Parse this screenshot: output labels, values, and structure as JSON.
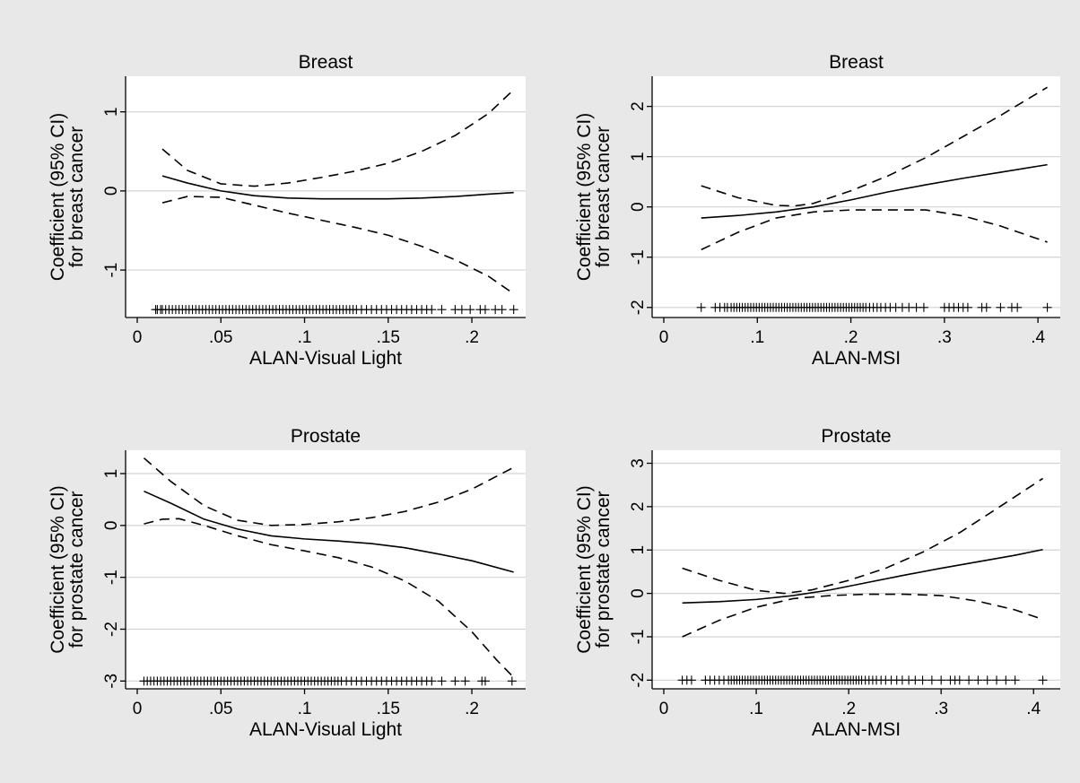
{
  "page": {
    "background": "#e8e8e8",
    "plot_background": "#ffffff",
    "grid_color": "#d3d3d3"
  },
  "chart_data": [
    {
      "type": "line",
      "title": "Breast",
      "xlabel": "ALAN-Visual Light",
      "ylabel": [
        "Coefficient (95% CI)",
        "for breast cancer"
      ],
      "xlim": [
        0,
        0.23
      ],
      "ylim": [
        -1.6,
        1.45
      ],
      "xticks": [
        {
          "value": 0,
          "label": "0"
        },
        {
          "value": 0.05,
          "label": ".05"
        },
        {
          "value": 0.1,
          "label": ".1"
        },
        {
          "value": 0.15,
          "label": ".15"
        },
        {
          "value": 0.2,
          "label": ".2"
        }
      ],
      "yticks": [
        {
          "value": -1,
          "label": "-1"
        },
        {
          "value": 0,
          "label": "0"
        },
        {
          "value": 1,
          "label": "1"
        }
      ],
      "grid": true,
      "series": [
        {
          "style": "solid",
          "x": [
            0.015,
            0.03,
            0.05,
            0.07,
            0.09,
            0.11,
            0.13,
            0.15,
            0.17,
            0.19,
            0.21,
            0.225
          ],
          "y": [
            0.19,
            0.1,
            0.0,
            -0.06,
            -0.09,
            -0.1,
            -0.1,
            -0.1,
            -0.09,
            -0.07,
            -0.04,
            -0.02
          ]
        },
        {
          "style": "dashed",
          "x": [
            0.015,
            0.03,
            0.05,
            0.07,
            0.09,
            0.11,
            0.13,
            0.15,
            0.17,
            0.19,
            0.21,
            0.225
          ],
          "y": [
            0.53,
            0.26,
            0.09,
            0.06,
            0.1,
            0.17,
            0.25,
            0.35,
            0.5,
            0.7,
            0.98,
            1.28
          ]
        },
        {
          "style": "dashed",
          "x": [
            0.015,
            0.03,
            0.05,
            0.07,
            0.09,
            0.11,
            0.13,
            0.15,
            0.17,
            0.19,
            0.21,
            0.225
          ],
          "y": [
            -0.15,
            -0.07,
            -0.08,
            -0.18,
            -0.28,
            -0.37,
            -0.46,
            -0.56,
            -0.7,
            -0.87,
            -1.08,
            -1.3
          ]
        }
      ],
      "rug": {
        "y": -1.5,
        "x": [
          0.011,
          0.012,
          0.014,
          0.015,
          0.017,
          0.019,
          0.021,
          0.023,
          0.025,
          0.027,
          0.029,
          0.031,
          0.033,
          0.035,
          0.037,
          0.039,
          0.041,
          0.043,
          0.045,
          0.047,
          0.049,
          0.051,
          0.053,
          0.055,
          0.057,
          0.059,
          0.061,
          0.063,
          0.065,
          0.067,
          0.069,
          0.071,
          0.073,
          0.075,
          0.077,
          0.079,
          0.081,
          0.083,
          0.085,
          0.087,
          0.089,
          0.091,
          0.093,
          0.095,
          0.097,
          0.099,
          0.101,
          0.103,
          0.105,
          0.107,
          0.109,
          0.111,
          0.113,
          0.115,
          0.117,
          0.119,
          0.121,
          0.123,
          0.125,
          0.127,
          0.129,
          0.131,
          0.134,
          0.137,
          0.14,
          0.143,
          0.146,
          0.149,
          0.152,
          0.155,
          0.158,
          0.161,
          0.164,
          0.167,
          0.17,
          0.173,
          0.176,
          0.182,
          0.19,
          0.194,
          0.199,
          0.205,
          0.208,
          0.214,
          0.218,
          0.225
        ]
      }
    },
    {
      "type": "line",
      "title": "Breast",
      "xlabel": "ALAN-MSI",
      "ylabel": [
        "Coefficient (95% CI)",
        "for breast cancer"
      ],
      "xlim": [
        0,
        0.42
      ],
      "ylim": [
        -2.2,
        2.6
      ],
      "xticks": [
        {
          "value": 0,
          "label": "0"
        },
        {
          "value": 0.1,
          "label": ".1"
        },
        {
          "value": 0.2,
          "label": ".2"
        },
        {
          "value": 0.3,
          "label": ".3"
        },
        {
          "value": 0.4,
          "label": ".4"
        }
      ],
      "yticks": [
        {
          "value": -2,
          "label": "-2"
        },
        {
          "value": -1,
          "label": "-1"
        },
        {
          "value": 0,
          "label": "0"
        },
        {
          "value": 1,
          "label": "1"
        },
        {
          "value": 2,
          "label": "2"
        }
      ],
      "grid": true,
      "series": [
        {
          "style": "solid",
          "x": [
            0.04,
            0.08,
            0.12,
            0.16,
            0.2,
            0.24,
            0.28,
            0.32,
            0.36,
            0.41
          ],
          "y": [
            -0.22,
            -0.17,
            -0.1,
            0.0,
            0.14,
            0.3,
            0.44,
            0.57,
            0.69,
            0.84
          ]
        },
        {
          "style": "dashed",
          "x": [
            0.04,
            0.08,
            0.12,
            0.14,
            0.16,
            0.2,
            0.24,
            0.28,
            0.32,
            0.36,
            0.41
          ],
          "y": [
            0.42,
            0.18,
            0.03,
            0.02,
            0.07,
            0.32,
            0.62,
            0.98,
            1.4,
            1.82,
            2.38
          ]
        },
        {
          "style": "dashed",
          "x": [
            0.04,
            0.08,
            0.12,
            0.16,
            0.2,
            0.24,
            0.28,
            0.32,
            0.36,
            0.41
          ],
          "y": [
            -0.85,
            -0.5,
            -0.22,
            -0.1,
            -0.06,
            -0.06,
            -0.06,
            -0.18,
            -0.38,
            -0.7
          ]
        }
      ],
      "rug": {
        "y": -2.0,
        "x": [
          0.04,
          0.055,
          0.06,
          0.065,
          0.068,
          0.072,
          0.075,
          0.078,
          0.081,
          0.084,
          0.087,
          0.09,
          0.093,
          0.096,
          0.099,
          0.102,
          0.105,
          0.108,
          0.111,
          0.114,
          0.117,
          0.12,
          0.123,
          0.126,
          0.129,
          0.132,
          0.135,
          0.138,
          0.141,
          0.144,
          0.147,
          0.15,
          0.153,
          0.156,
          0.159,
          0.162,
          0.165,
          0.168,
          0.171,
          0.174,
          0.177,
          0.18,
          0.183,
          0.186,
          0.189,
          0.192,
          0.195,
          0.198,
          0.201,
          0.204,
          0.207,
          0.21,
          0.213,
          0.216,
          0.22,
          0.224,
          0.228,
          0.232,
          0.237,
          0.242,
          0.248,
          0.255,
          0.262,
          0.27,
          0.278,
          0.3,
          0.305,
          0.31,
          0.315,
          0.32,
          0.325,
          0.34,
          0.345,
          0.36,
          0.372,
          0.378,
          0.41
        ]
      }
    },
    {
      "type": "line",
      "title": "Prostate",
      "xlabel": "ALAN-Visual Light",
      "ylabel": [
        "Coefficient (95% CI)",
        "for prostate cancer"
      ],
      "xlim": [
        0,
        0.23
      ],
      "ylim": [
        -3.15,
        1.45
      ],
      "xticks": [
        {
          "value": 0,
          "label": "0"
        },
        {
          "value": 0.05,
          "label": ".05"
        },
        {
          "value": 0.1,
          "label": ".1"
        },
        {
          "value": 0.15,
          "label": ".15"
        },
        {
          "value": 0.2,
          "label": ".2"
        }
      ],
      "yticks": [
        {
          "value": -3,
          "label": "-3"
        },
        {
          "value": -2,
          "label": "-2"
        },
        {
          "value": -1,
          "label": "-1"
        },
        {
          "value": 0,
          "label": "0"
        },
        {
          "value": 1,
          "label": "1"
        }
      ],
      "grid": true,
      "series": [
        {
          "style": "solid",
          "x": [
            0.004,
            0.02,
            0.04,
            0.06,
            0.08,
            0.1,
            0.12,
            0.14,
            0.16,
            0.18,
            0.2,
            0.225
          ],
          "y": [
            0.66,
            0.43,
            0.12,
            -0.07,
            -0.2,
            -0.26,
            -0.3,
            -0.35,
            -0.43,
            -0.55,
            -0.68,
            -0.9
          ]
        },
        {
          "style": "dashed",
          "x": [
            0.004,
            0.02,
            0.04,
            0.06,
            0.08,
            0.1,
            0.12,
            0.14,
            0.16,
            0.18,
            0.2,
            0.225
          ],
          "y": [
            1.3,
            0.85,
            0.38,
            0.1,
            0.0,
            0.02,
            0.07,
            0.15,
            0.27,
            0.45,
            0.7,
            1.12
          ]
        },
        {
          "style": "dashed",
          "x": [
            0.004,
            0.015,
            0.025,
            0.04,
            0.06,
            0.08,
            0.1,
            0.12,
            0.14,
            0.16,
            0.18,
            0.2,
            0.215,
            0.225
          ],
          "y": [
            0.03,
            0.12,
            0.13,
            0.0,
            -0.2,
            -0.37,
            -0.49,
            -0.62,
            -0.8,
            -1.07,
            -1.46,
            -2.05,
            -2.6,
            -2.93
          ]
        }
      ],
      "rug": {
        "y": -3.0,
        "x": [
          0.004,
          0.006,
          0.008,
          0.01,
          0.012,
          0.014,
          0.016,
          0.018,
          0.02,
          0.022,
          0.024,
          0.026,
          0.028,
          0.03,
          0.032,
          0.034,
          0.036,
          0.038,
          0.04,
          0.042,
          0.044,
          0.046,
          0.048,
          0.05,
          0.052,
          0.054,
          0.056,
          0.058,
          0.06,
          0.062,
          0.064,
          0.066,
          0.068,
          0.07,
          0.072,
          0.074,
          0.076,
          0.078,
          0.08,
          0.082,
          0.084,
          0.086,
          0.088,
          0.09,
          0.092,
          0.094,
          0.096,
          0.098,
          0.1,
          0.102,
          0.104,
          0.106,
          0.108,
          0.11,
          0.112,
          0.114,
          0.116,
          0.118,
          0.12,
          0.122,
          0.125,
          0.128,
          0.131,
          0.134,
          0.137,
          0.14,
          0.143,
          0.146,
          0.149,
          0.152,
          0.155,
          0.158,
          0.161,
          0.164,
          0.167,
          0.17,
          0.173,
          0.176,
          0.182,
          0.19,
          0.196,
          0.206,
          0.208,
          0.224
        ]
      }
    },
    {
      "type": "line",
      "title": "Prostate",
      "xlabel": "ALAN-MSI",
      "ylabel": [
        "Coefficient (95% CI)",
        "for prostate cancer"
      ],
      "xlim": [
        0,
        0.425
      ],
      "ylim": [
        -2.2,
        3.3
      ],
      "xticks": [
        {
          "value": 0,
          "label": "0"
        },
        {
          "value": 0.1,
          "label": ".1"
        },
        {
          "value": 0.2,
          "label": ".2"
        },
        {
          "value": 0.3,
          "label": ".3"
        },
        {
          "value": 0.4,
          "label": ".4"
        }
      ],
      "yticks": [
        {
          "value": -2,
          "label": "-2"
        },
        {
          "value": -1,
          "label": "-1"
        },
        {
          "value": 0,
          "label": "0"
        },
        {
          "value": 1,
          "label": "1"
        },
        {
          "value": 2,
          "label": "2"
        },
        {
          "value": 3,
          "label": "3"
        }
      ],
      "grid": true,
      "series": [
        {
          "style": "solid",
          "x": [
            0.02,
            0.06,
            0.1,
            0.14,
            0.18,
            0.22,
            0.26,
            0.3,
            0.34,
            0.38,
            0.41
          ],
          "y": [
            -0.22,
            -0.19,
            -0.14,
            -0.05,
            0.08,
            0.25,
            0.42,
            0.58,
            0.73,
            0.88,
            1.01
          ]
        },
        {
          "style": "dashed",
          "x": [
            0.02,
            0.06,
            0.1,
            0.13,
            0.16,
            0.2,
            0.24,
            0.28,
            0.32,
            0.36,
            0.41
          ],
          "y": [
            0.58,
            0.3,
            0.07,
            0.0,
            0.08,
            0.3,
            0.58,
            0.95,
            1.4,
            1.95,
            2.65
          ]
        },
        {
          "style": "dashed",
          "x": [
            0.02,
            0.06,
            0.1,
            0.14,
            0.18,
            0.22,
            0.26,
            0.3,
            0.34,
            0.38,
            0.41
          ],
          "y": [
            -1.0,
            -0.62,
            -0.32,
            -0.12,
            -0.05,
            -0.02,
            -0.02,
            -0.05,
            -0.18,
            -0.38,
            -0.6
          ]
        }
      ],
      "rug": {
        "y": -2.0,
        "x": [
          0.02,
          0.025,
          0.03,
          0.045,
          0.05,
          0.055,
          0.06,
          0.065,
          0.07,
          0.073,
          0.076,
          0.079,
          0.082,
          0.085,
          0.088,
          0.091,
          0.094,
          0.097,
          0.1,
          0.103,
          0.106,
          0.109,
          0.112,
          0.115,
          0.118,
          0.121,
          0.124,
          0.127,
          0.13,
          0.133,
          0.136,
          0.139,
          0.142,
          0.145,
          0.148,
          0.151,
          0.154,
          0.157,
          0.16,
          0.163,
          0.166,
          0.169,
          0.172,
          0.175,
          0.178,
          0.181,
          0.184,
          0.187,
          0.19,
          0.193,
          0.196,
          0.199,
          0.202,
          0.205,
          0.208,
          0.211,
          0.214,
          0.218,
          0.222,
          0.226,
          0.23,
          0.235,
          0.24,
          0.246,
          0.252,
          0.258,
          0.265,
          0.272,
          0.28,
          0.29,
          0.3,
          0.31,
          0.315,
          0.32,
          0.33,
          0.34,
          0.35,
          0.36,
          0.37,
          0.38,
          0.41
        ]
      }
    }
  ]
}
